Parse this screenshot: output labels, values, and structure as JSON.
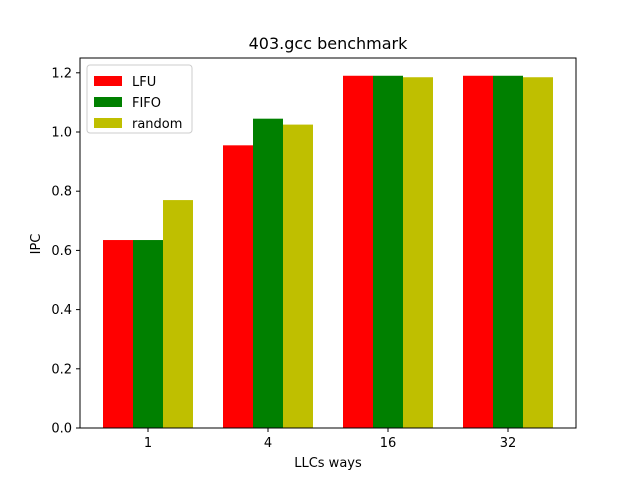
{
  "chart_data": {
    "type": "bar",
    "title": "403.gcc benchmark",
    "xlabel": "LLCs ways",
    "ylabel": "IPC",
    "categories": [
      "1",
      "4",
      "16",
      "32"
    ],
    "ylim": [
      0,
      1.25
    ],
    "yticks": [
      "0.0",
      "0.2",
      "0.4",
      "0.6",
      "0.8",
      "1.0",
      "1.2"
    ],
    "grid": false,
    "legend_position": "top-left",
    "series": [
      {
        "name": "LFU",
        "color": "#ff0000",
        "values": [
          0.635,
          0.955,
          1.19,
          1.19
        ]
      },
      {
        "name": "FIFO",
        "color": "#008000",
        "values": [
          0.635,
          1.045,
          1.19,
          1.19
        ]
      },
      {
        "name": "random",
        "color": "#bfbf00",
        "values": [
          0.77,
          1.025,
          1.185,
          1.185
        ]
      }
    ]
  }
}
